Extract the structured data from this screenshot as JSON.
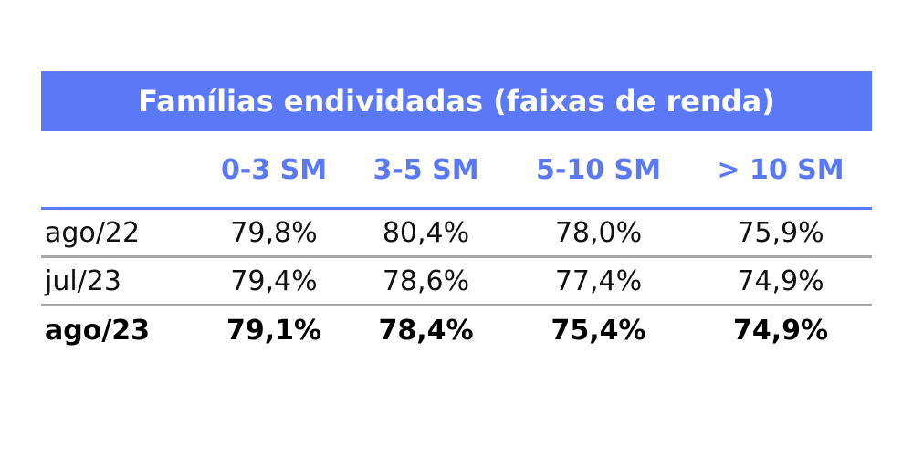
{
  "chart_data": {
    "type": "table",
    "title": "Famílias endividadas (faixas de renda)",
    "columns": [
      "",
      "0-3 SM",
      "3-5 SM",
      "5-10 SM",
      "> 10 SM"
    ],
    "rows": [
      {
        "label": "ago/22",
        "values": [
          "79,8%",
          "80,4%",
          "78,0%",
          "75,9%"
        ],
        "bold": false
      },
      {
        "label": "jul/23",
        "values": [
          "79,4%",
          "78,6%",
          "77,4%",
          "74,9%"
        ],
        "bold": false
      },
      {
        "label": "ago/23",
        "values": [
          "79,1%",
          "78,4%",
          "75,4%",
          "74,9%"
        ],
        "bold": true
      }
    ],
    "colors": {
      "accent": "#5b78f6",
      "separator": "#a6a6a6",
      "text": "#111111"
    }
  }
}
